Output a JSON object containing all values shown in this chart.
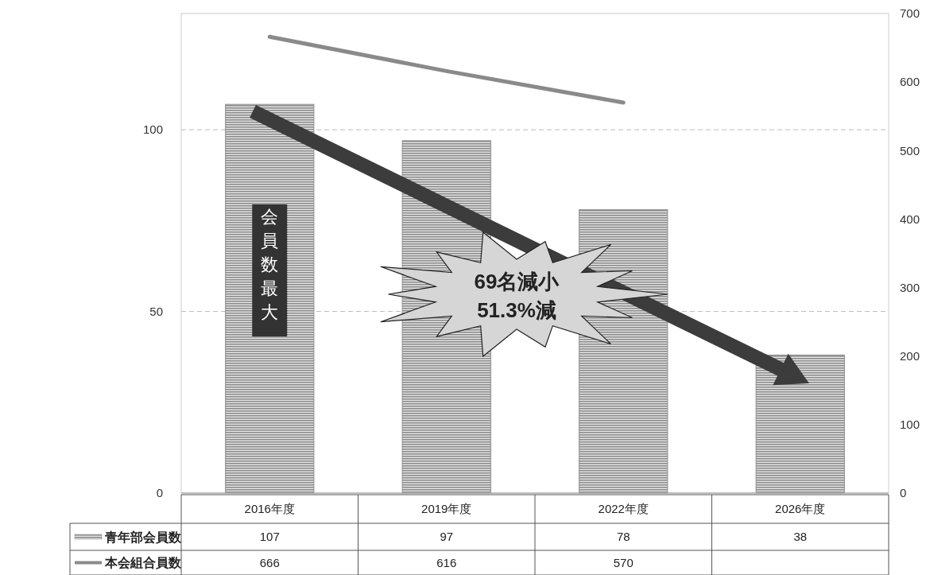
{
  "chart_data": {
    "type": "bar",
    "categories": [
      "2016年度",
      "2019年度",
      "2022年度",
      "2026年度"
    ],
    "series": [
      {
        "name": "青年部会員数",
        "color": "#8c8c8c",
        "values": [
          107,
          97,
          78,
          38
        ]
      },
      {
        "name": "本会組合員数",
        "type": "line",
        "axis": "y2",
        "color": "#8a8a8a",
        "values": [
          666,
          616,
          570,
          null
        ]
      }
    ],
    "ylim": [
      0,
      132
    ],
    "yticks": [
      0,
      50,
      100
    ],
    "y2lim": [
      0,
      700
    ],
    "y2ticks": [
      0,
      100,
      200,
      300,
      400,
      500,
      600,
      700
    ],
    "grid": "y",
    "legend": "bottom",
    "data_labels": true,
    "marker": "none",
    "annotations": [
      "会員数最大",
      "69名減小",
      "51.3%減"
    ]
  }
}
